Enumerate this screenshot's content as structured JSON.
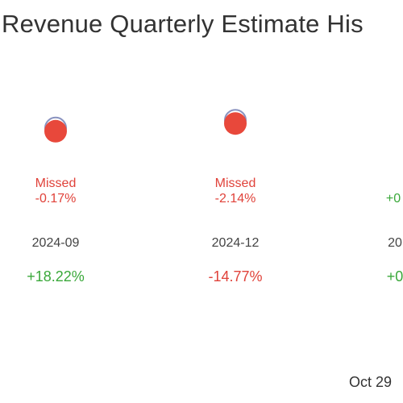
{
  "title": "Revenue Quarterly Estimate His",
  "date_label": "Oct 29",
  "colors": {
    "miss": "#e8483b",
    "miss_text": "#e0423a",
    "estimate_ring": "#8a93c0",
    "beat_text": "#3aa83a",
    "neg_text": "#e0423a",
    "period_text": "#444444"
  },
  "chart_data": {
    "type": "scatter",
    "title": "Revenue Quarterly Estimate His",
    "categories": [
      "2024-09",
      "2024-12",
      "20"
    ],
    "series": [
      {
        "points": [
          {
            "period": "2024-09",
            "status": "Missed",
            "surprise": "-0.17%",
            "change": "+18.22%",
            "change_sign": "pos",
            "rel_level": 0.62
          },
          {
            "period": "2024-12",
            "status": "Missed",
            "surprise": "-2.14%",
            "change": "-14.77%",
            "change_sign": "neg",
            "rel_level": 0.78
          },
          {
            "period": "20",
            "status": "",
            "surprise": "+0",
            "change": "+0",
            "change_sign": "pos",
            "rel_level": null
          }
        ]
      }
    ]
  }
}
